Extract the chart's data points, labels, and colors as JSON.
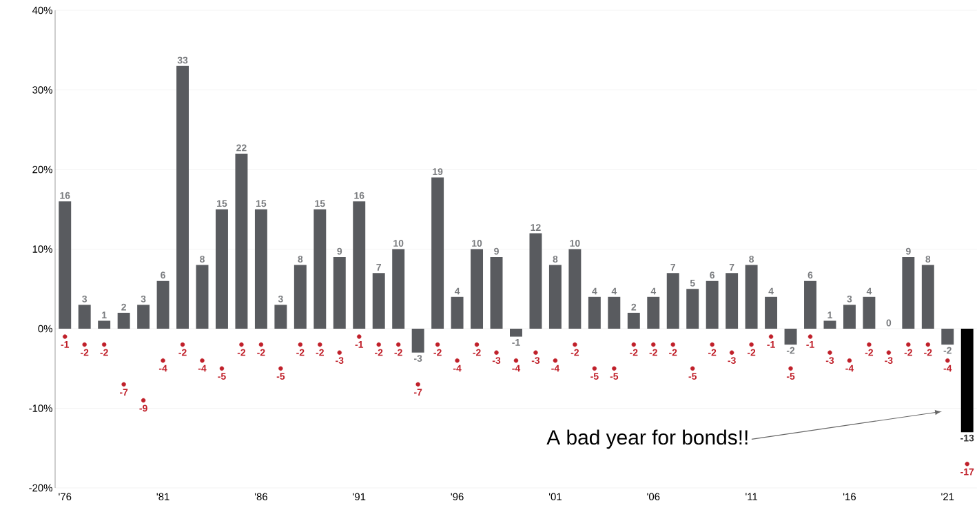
{
  "chart_data": {
    "type": "bar",
    "categories": [
      "'76",
      null,
      null,
      null,
      null,
      "'81",
      null,
      null,
      null,
      null,
      "'86",
      null,
      null,
      null,
      null,
      "'91",
      null,
      null,
      null,
      null,
      "'96",
      null,
      null,
      null,
      null,
      "'01",
      null,
      null,
      null,
      null,
      "'06",
      null,
      null,
      null,
      null,
      "'11",
      null,
      null,
      null,
      null,
      "'16",
      null,
      null,
      null,
      null,
      "'21",
      null
    ],
    "series": [
      {
        "colors": [
          "#595b5f",
          "#595b5f",
          "#595b5f",
          "#595b5f",
          "#595b5f",
          "#595b5f",
          "#595b5f",
          "#595b5f",
          "#595b5f",
          "#595b5f",
          "#595b5f",
          "#595b5f",
          "#595b5f",
          "#595b5f",
          "#595b5f",
          "#595b5f",
          "#595b5f",
          "#595b5f",
          "#595b5f",
          "#595b5f",
          "#595b5f",
          "#595b5f",
          "#595b5f",
          "#595b5f",
          "#595b5f",
          "#595b5f",
          "#595b5f",
          "#595b5f",
          "#595b5f",
          "#595b5f",
          "#595b5f",
          "#595b5f",
          "#595b5f",
          "#595b5f",
          "#595b5f",
          "#595b5f",
          "#595b5f",
          "#595b5f",
          "#595b5f",
          "#595b5f",
          "#595b5f",
          "#595b5f",
          "#595b5f",
          "#595b5f",
          "#595b5f",
          "#595b5f",
          "#000000"
        ],
        "values": [
          16,
          3,
          1,
          2,
          3,
          6,
          33,
          8,
          15,
          22,
          15,
          3,
          8,
          15,
          9,
          16,
          7,
          10,
          -3,
          19,
          4,
          10,
          9,
          -1,
          12,
          8,
          10,
          4,
          4,
          2,
          4,
          7,
          5,
          6,
          7,
          8,
          4,
          -2,
          6,
          1,
          3,
          4,
          0,
          9,
          8,
          -2,
          -13
        ]
      },
      {
        "type": "scatter",
        "color": "#c0202a",
        "marker": "circle",
        "values": [
          -1,
          -2,
          -2,
          -7,
          -9,
          -4,
          -2,
          -4,
          -5,
          -2,
          -2,
          -5,
          -2,
          -2,
          -3,
          -1,
          -2,
          -2,
          -7,
          -2,
          -4,
          -2,
          -3,
          -4,
          -3,
          -4,
          -2,
          -5,
          -5,
          -2,
          -2,
          -2,
          -5,
          -2,
          -3,
          -2,
          -1,
          -5,
          -1,
          -3,
          -4,
          -2,
          -3,
          -2,
          -2,
          -4,
          -17
        ]
      }
    ],
    "ylim": [
      -20,
      40
    ],
    "yticks": [
      {
        "value": -20,
        "label": "-20%"
      },
      {
        "value": -10,
        "label": "-10%"
      },
      {
        "value": 0,
        "label": "0%"
      },
      {
        "value": 10,
        "label": "10%"
      },
      {
        "value": 20,
        "label": "20%"
      },
      {
        "value": 30,
        "label": "30%"
      },
      {
        "value": 40,
        "label": "40%"
      }
    ],
    "grid": "y",
    "data_labels": true,
    "annotations": [
      "A bad year for bonds!!"
    ]
  }
}
